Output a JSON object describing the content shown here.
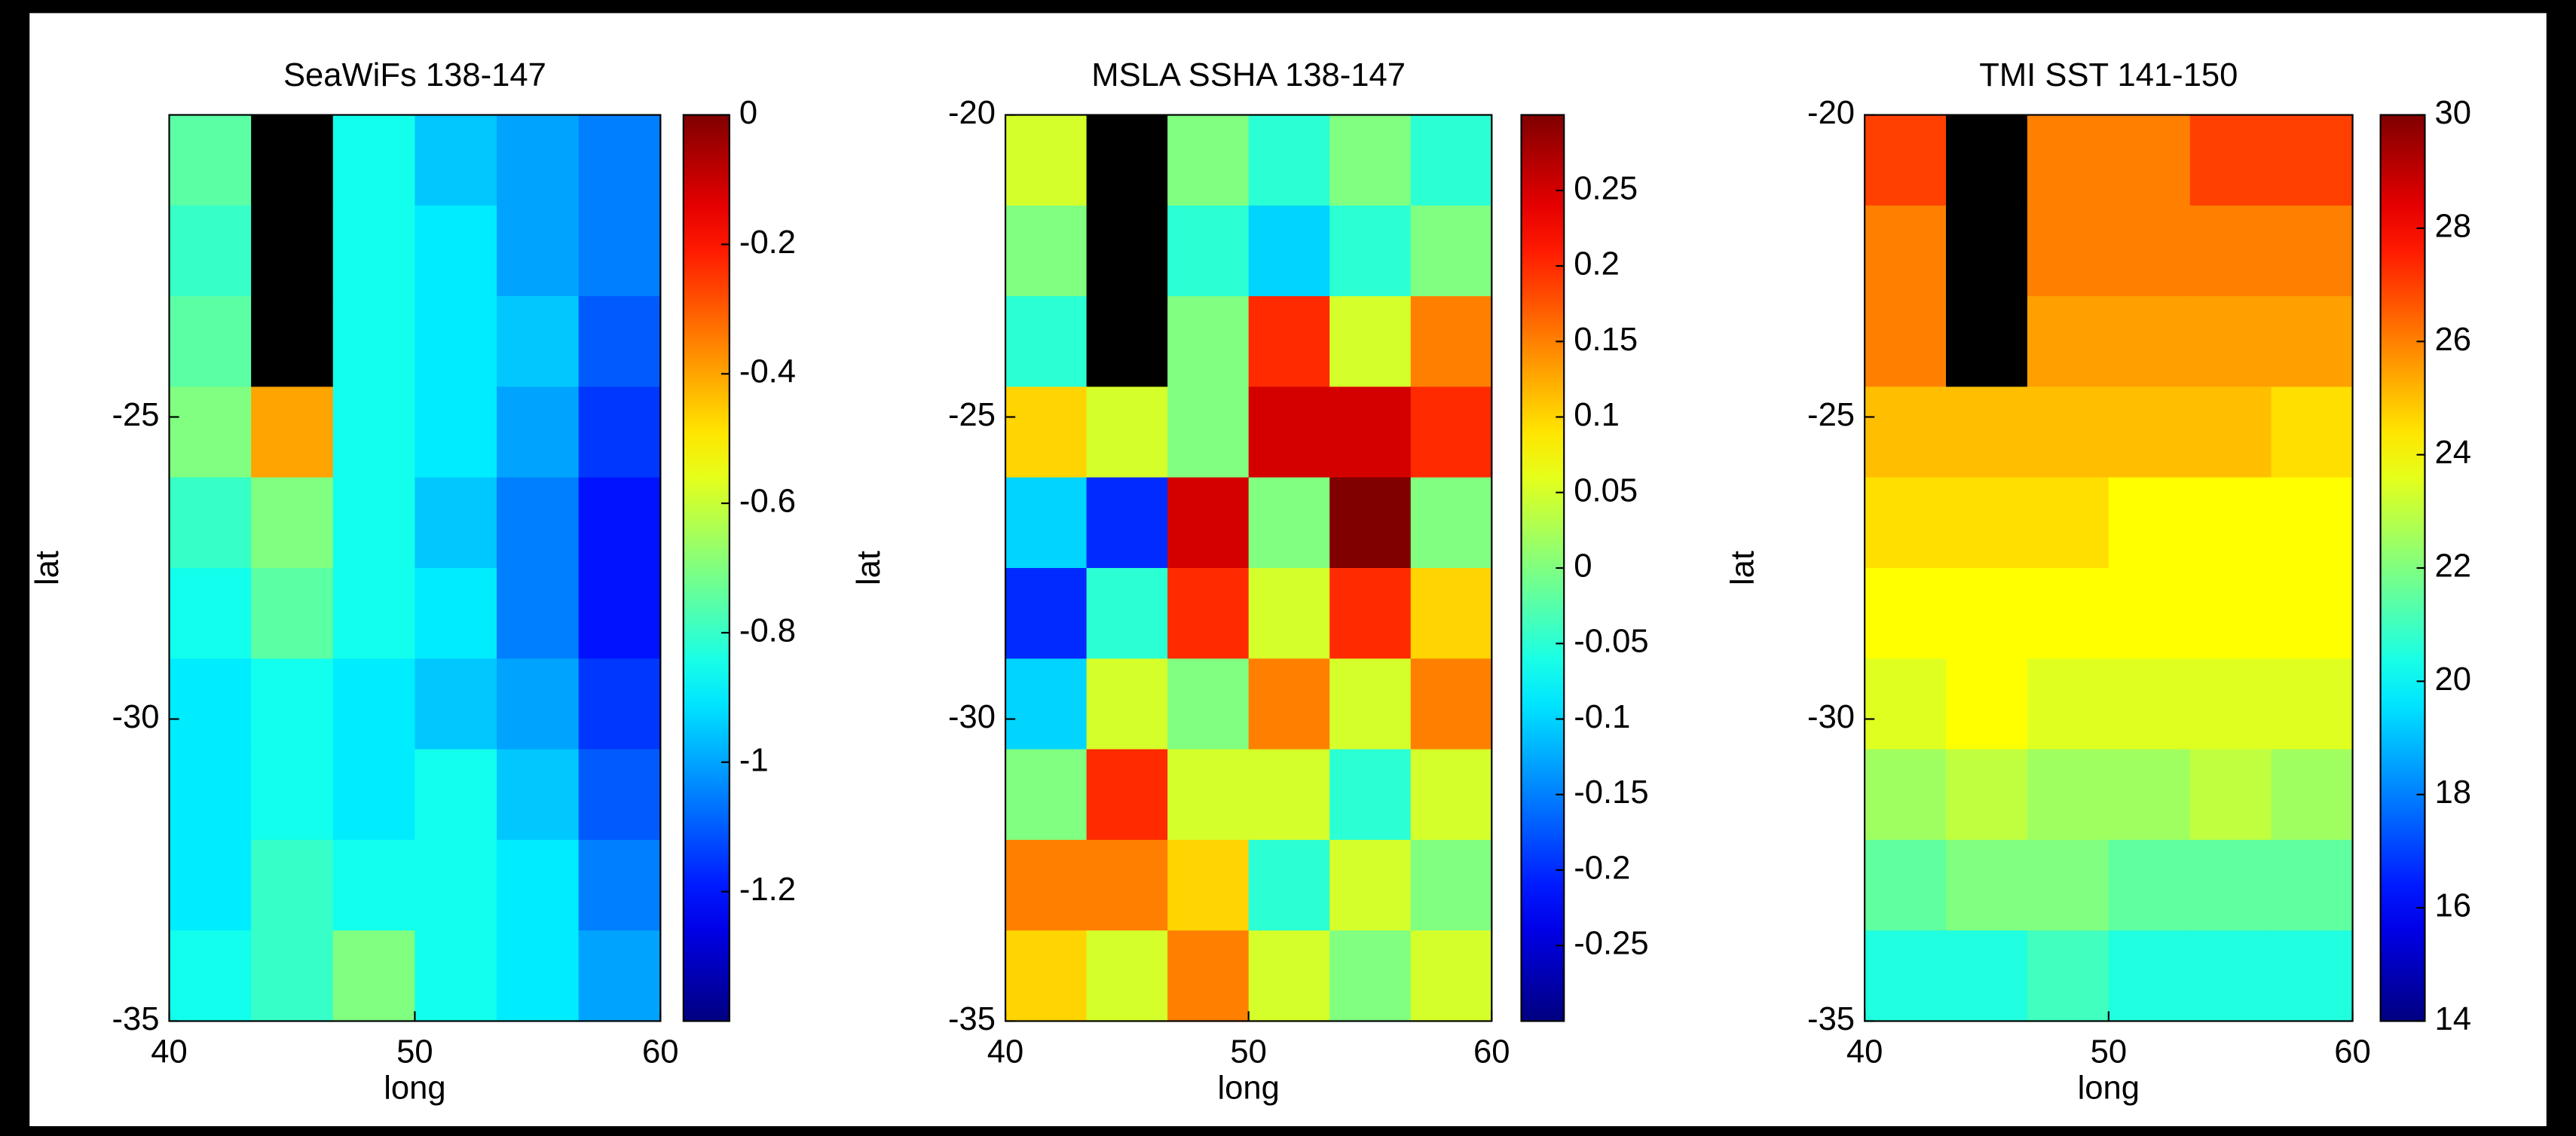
{
  "chart_data": [
    {
      "type": "heatmap",
      "title": "SeaWiFs 138-147",
      "xlabel": "long",
      "ylabel": "lat",
      "colormap": "jet",
      "xlim": [
        40,
        60
      ],
      "ylim": [
        -35,
        -20
      ],
      "xticks": [
        40,
        50,
        60
      ],
      "yticks": [
        -35,
        -30,
        -25
      ],
      "clim": [
        -1.4,
        0
      ],
      "cticks": [
        0,
        -0.2,
        -0.4,
        -0.6,
        -0.8,
        -1,
        -1.2
      ],
      "values": [
        [
          -0.75,
          null,
          -0.85,
          -0.95,
          -1.0,
          -1.05
        ],
        [
          -0.8,
          null,
          -0.85,
          -0.9,
          -1.0,
          -1.05
        ],
        [
          -0.75,
          null,
          -0.85,
          -0.9,
          -0.95,
          -1.1
        ],
        [
          -0.7,
          -0.4,
          -0.85,
          -0.9,
          -1.0,
          -1.15
        ],
        [
          -0.8,
          -0.7,
          -0.85,
          -0.95,
          -1.05,
          -1.2
        ],
        [
          -0.85,
          -0.75,
          -0.85,
          -0.9,
          -1.05,
          -1.2
        ],
        [
          -0.9,
          -0.85,
          -0.9,
          -0.95,
          -1.0,
          -1.15
        ],
        [
          -0.9,
          -0.85,
          -0.9,
          -0.85,
          -0.95,
          -1.1
        ],
        [
          -0.9,
          -0.8,
          -0.85,
          -0.85,
          -0.9,
          -1.05
        ],
        [
          -0.85,
          -0.8,
          -0.7,
          -0.85,
          -0.9,
          -1.0
        ]
      ]
    },
    {
      "type": "heatmap",
      "title": "MSLA SSHA 138-147",
      "xlabel": "long",
      "ylabel": "lat",
      "colormap": "jet",
      "xlim": [
        40,
        60
      ],
      "ylim": [
        -35,
        -20
      ],
      "xticks": [
        40,
        50,
        60
      ],
      "yticks": [
        -35,
        -30,
        -25,
        -20
      ],
      "clim": [
        -0.3,
        0.3
      ],
      "cticks": [
        0.25,
        0.2,
        0.15,
        0.1,
        0.05,
        0,
        -0.05,
        -0.1,
        -0.15,
        -0.2,
        -0.25
      ],
      "values": [
        [
          0.05,
          null,
          0.0,
          -0.05,
          0.0,
          -0.05
        ],
        [
          0.0,
          null,
          -0.05,
          -0.1,
          -0.05,
          0.0
        ],
        [
          -0.05,
          null,
          0.0,
          0.2,
          0.05,
          0.15
        ],
        [
          0.1,
          0.05,
          0.0,
          0.25,
          0.25,
          0.2
        ],
        [
          -0.1,
          -0.2,
          0.25,
          0.0,
          0.3,
          0.0
        ],
        [
          -0.2,
          -0.05,
          0.2,
          0.05,
          0.2,
          0.1
        ],
        [
          -0.1,
          0.05,
          0.0,
          0.15,
          0.05,
          0.15
        ],
        [
          0.0,
          0.2,
          0.05,
          0.05,
          -0.05,
          0.05
        ],
        [
          0.15,
          0.15,
          0.1,
          -0.05,
          0.05,
          0.0
        ],
        [
          0.1,
          0.05,
          0.15,
          0.05,
          0.0,
          0.05
        ]
      ]
    },
    {
      "type": "heatmap",
      "title": "TMI SST 141-150",
      "xlabel": "long",
      "ylabel": "lat",
      "colormap": "jet",
      "xlim": [
        40,
        60
      ],
      "ylim": [
        -35,
        -20
      ],
      "xticks": [
        40,
        50,
        60
      ],
      "yticks": [
        -35,
        -30,
        -25,
        -20
      ],
      "clim": [
        14,
        30
      ],
      "cticks": [
        30,
        28,
        26,
        24,
        22,
        20,
        18,
        16,
        14
      ],
      "values": [
        [
          27,
          null,
          26,
          26,
          27,
          27
        ],
        [
          26,
          null,
          26,
          26,
          26,
          26
        ],
        [
          26,
          null,
          25.5,
          25.5,
          25.5,
          25.5
        ],
        [
          25,
          25,
          25,
          25,
          25,
          24.5
        ],
        [
          24.5,
          24.5,
          24.5,
          24,
          24,
          24
        ],
        [
          24,
          24,
          24,
          24,
          24,
          24
        ],
        [
          23.5,
          24,
          23.5,
          23.5,
          23.5,
          23.5
        ],
        [
          22.5,
          23,
          22.5,
          22.5,
          23,
          22.5
        ],
        [
          21.5,
          22,
          22,
          21.5,
          21.5,
          21.5
        ],
        [
          20.5,
          20.5,
          21,
          20.5,
          20.5,
          20.5
        ]
      ]
    }
  ]
}
